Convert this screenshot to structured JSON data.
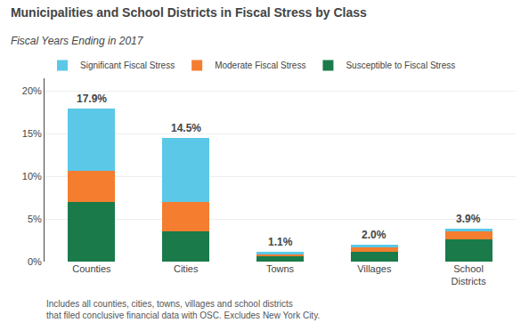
{
  "chart_data": {
    "type": "bar",
    "stacked": true,
    "title": "Municipalities and School Districts in Fiscal Stress by Class",
    "subtitle": "Fiscal Years Ending in 2017",
    "footnote": "Includes all counties, cities, towns, villages and school districts\nthat filed conclusive financial data with OSC. Excludes New York City.",
    "categories": [
      "Counties",
      "Cities",
      "Towns",
      "Villages",
      "School\nDistricts"
    ],
    "series": [
      {
        "name": "Susceptible to Fiscal Stress",
        "color": "#1a7a4a",
        "values": [
          7.0,
          3.5,
          0.7,
          1.2,
          2.6
        ]
      },
      {
        "name": "Moderate Fiscal Stress",
        "color": "#f47d30",
        "values": [
          3.6,
          3.5,
          0.2,
          0.5,
          0.9
        ]
      },
      {
        "name": "Significant Fiscal Stress",
        "color": "#5bc8e8",
        "values": [
          7.3,
          7.5,
          0.2,
          0.3,
          0.4
        ]
      }
    ],
    "annotations": [
      {
        "category": "Counties",
        "text": "17.9%"
      },
      {
        "category": "Cities",
        "text": "14.5%"
      },
      {
        "category": "Towns",
        "text": "1.1%"
      },
      {
        "category": "Villages",
        "text": "2.0%"
      },
      {
        "category": "School\nDistricts",
        "text": "3.9%"
      }
    ],
    "ylim": [
      0,
      21.5
    ],
    "yticks": [
      {
        "value": 0,
        "label": "0%"
      },
      {
        "value": 5,
        "label": "5%"
      },
      {
        "value": 10,
        "label": "10%"
      },
      {
        "value": 15,
        "label": "15%"
      },
      {
        "value": 20,
        "label": "20%"
      }
    ],
    "grid": true,
    "legend": "upper left"
  }
}
